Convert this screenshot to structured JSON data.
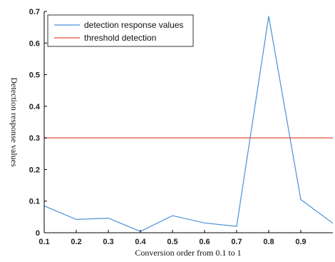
{
  "chart_data": {
    "type": "line",
    "title": "",
    "xlabel": "Conversion order from 0.1 to 1",
    "ylabel": "Detection response values",
    "xlim": [
      0.1,
      1.0
    ],
    "ylim": [
      0,
      0.7
    ],
    "x_ticks": [
      "0.1",
      "0.2",
      "0.3",
      "0.4",
      "0.5",
      "0.6",
      "0.7",
      "0.8",
      "0.9"
    ],
    "y_ticks": [
      "0",
      "0.1",
      "0.2",
      "0.3",
      "0.4",
      "0.5",
      "0.6",
      "0.7"
    ],
    "grid": false,
    "legend_position": "top-left",
    "series": [
      {
        "name": "detection response values",
        "color": "#4a90d9",
        "x": [
          0.1,
          0.2,
          0.3,
          0.4,
          0.5,
          0.6,
          0.7,
          0.8,
          0.9,
          1.0
        ],
        "y": [
          0.085,
          0.042,
          0.046,
          0.004,
          0.054,
          0.031,
          0.02,
          0.685,
          0.105,
          0.03
        ]
      },
      {
        "name": "threshold detection",
        "color": "#e0503a",
        "x": [
          0.1,
          1.0
        ],
        "y": [
          0.3,
          0.3
        ]
      }
    ]
  }
}
